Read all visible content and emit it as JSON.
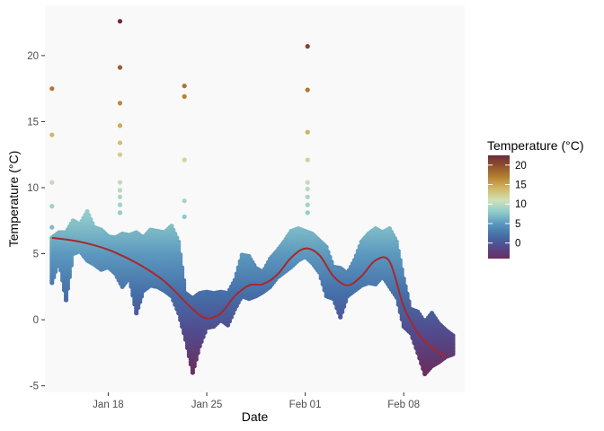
{
  "chart_data": {
    "type": "scatter",
    "title": "",
    "xlabel": "Date",
    "ylabel": "Temperature (°C)",
    "x_axis_type": "date",
    "xlim": [
      "2024-01-13T12:00",
      "2024-02-12T08:00"
    ],
    "ylim": [
      -5.5,
      23.8
    ],
    "x_ticks": [
      {
        "date": "2024-01-18",
        "label": "Jan 18"
      },
      {
        "date": "2024-01-25",
        "label": "Jan 25"
      },
      {
        "date": "2024-02-01",
        "label": "Feb 01"
      },
      {
        "date": "2024-02-08",
        "label": "Feb 08"
      }
    ],
    "y_ticks": [
      -5,
      0,
      5,
      10,
      15,
      20
    ],
    "grid": false,
    "panel_background": "#F9F9F9",
    "legend": {
      "title": "Temperature (°C)",
      "placement": "right",
      "ticks": [
        20,
        15,
        10,
        5,
        0
      ],
      "range": [
        -4,
        22.5
      ]
    },
    "color_scale": [
      {
        "value": -4,
        "color": "#6B2E5E"
      },
      {
        "value": -1,
        "color": "#524A8C"
      },
      {
        "value": 2,
        "color": "#456FA8"
      },
      {
        "value": 5,
        "color": "#5C98BE"
      },
      {
        "value": 8,
        "color": "#90CDCB"
      },
      {
        "value": 11,
        "color": "#CFE1B6"
      },
      {
        "value": 14,
        "color": "#D2B764"
      },
      {
        "value": 17,
        "color": "#B57F32"
      },
      {
        "value": 20,
        "color": "#8E4E2C"
      },
      {
        "value": 22.5,
        "color": "#6B2A3F"
      }
    ],
    "trend_color": "#A8282B",
    "trend": [
      {
        "x": "2024-01-14T00:00",
        "y": 6.2
      },
      {
        "x": "2024-01-16T00:00",
        "y": 5.9
      },
      {
        "x": "2024-01-18T00:00",
        "y": 5.3
      },
      {
        "x": "2024-01-20T00:00",
        "y": 4.3
      },
      {
        "x": "2024-01-22T00:00",
        "y": 2.9
      },
      {
        "x": "2024-01-24T00:00",
        "y": 0.8
      },
      {
        "x": "2024-01-25T00:00",
        "y": 0.1
      },
      {
        "x": "2024-01-26T00:00",
        "y": 0.5
      },
      {
        "x": "2024-01-27T00:00",
        "y": 1.8
      },
      {
        "x": "2024-01-28T00:00",
        "y": 2.6
      },
      {
        "x": "2024-01-29T00:00",
        "y": 2.7
      },
      {
        "x": "2024-01-30T00:00",
        "y": 3.4
      },
      {
        "x": "2024-01-31T00:00",
        "y": 4.7
      },
      {
        "x": "2024-02-01T00:00",
        "y": 5.4
      },
      {
        "x": "2024-02-02T00:00",
        "y": 4.9
      },
      {
        "x": "2024-02-03T00:00",
        "y": 3.3
      },
      {
        "x": "2024-02-04T00:00",
        "y": 2.6
      },
      {
        "x": "2024-02-05T00:00",
        "y": 3.3
      },
      {
        "x": "2024-02-06T00:00",
        "y": 4.5
      },
      {
        "x": "2024-02-07T00:00",
        "y": 4.4
      },
      {
        "x": "2024-02-08T00:00",
        "y": 1.0
      },
      {
        "x": "2024-02-09T00:00",
        "y": -1.0
      },
      {
        "x": "2024-02-10T00:00",
        "y": -2.1
      },
      {
        "x": "2024-02-11T00:00",
        "y": -2.8
      }
    ],
    "outliers": [
      {
        "x": "2024-01-14T00:00",
        "y": 17.5
      },
      {
        "x": "2024-01-14T00:00",
        "y": 14.0
      },
      {
        "x": "2024-01-14T00:00",
        "y": 10.4
      },
      {
        "x": "2024-01-14T00:00",
        "y": 8.6
      },
      {
        "x": "2024-01-14T00:00",
        "y": 7.0
      },
      {
        "x": "2024-01-18T20:00",
        "y": 22.6
      },
      {
        "x": "2024-01-18T20:00",
        "y": 19.1
      },
      {
        "x": "2024-01-18T20:00",
        "y": 16.4
      },
      {
        "x": "2024-01-18T20:00",
        "y": 14.7
      },
      {
        "x": "2024-01-18T20:00",
        "y": 13.4
      },
      {
        "x": "2024-01-18T20:00",
        "y": 12.5
      },
      {
        "x": "2024-01-18T20:00",
        "y": 10.4
      },
      {
        "x": "2024-01-18T20:00",
        "y": 9.8
      },
      {
        "x": "2024-01-18T20:00",
        "y": 9.3
      },
      {
        "x": "2024-01-18T20:00",
        "y": 8.7
      },
      {
        "x": "2024-01-18T20:00",
        "y": 8.1
      },
      {
        "x": "2024-01-23T10:00",
        "y": 17.7
      },
      {
        "x": "2024-01-23T10:00",
        "y": 16.9
      },
      {
        "x": "2024-01-23T10:00",
        "y": 12.1
      },
      {
        "x": "2024-01-23T10:00",
        "y": 9.0
      },
      {
        "x": "2024-01-23T10:00",
        "y": 7.8
      },
      {
        "x": "2024-02-01T04:00",
        "y": 20.7
      },
      {
        "x": "2024-02-01T04:00",
        "y": 17.4
      },
      {
        "x": "2024-02-01T04:00",
        "y": 14.2
      },
      {
        "x": "2024-02-01T04:00",
        "y": 12.1
      },
      {
        "x": "2024-02-01T04:00",
        "y": 10.4
      },
      {
        "x": "2024-02-01T04:00",
        "y": 9.9
      },
      {
        "x": "2024-02-01T04:00",
        "y": 9.3
      },
      {
        "x": "2024-02-01T04:00",
        "y": 8.7
      },
      {
        "x": "2024-02-01T04:00",
        "y": 8.1
      }
    ],
    "bands": [
      {
        "x": "2024-01-14T00:00",
        "lo": 2.8,
        "hi": 6.2
      },
      {
        "x": "2024-01-14T12:00",
        "lo": 4.5,
        "hi": 6.6
      },
      {
        "x": "2024-01-15T00:00",
        "lo": 1.5,
        "hi": 6.6
      },
      {
        "x": "2024-01-15T12:00",
        "lo": 5.0,
        "hi": 7.5
      },
      {
        "x": "2024-01-16T00:00",
        "lo": 5.2,
        "hi": 7.2
      },
      {
        "x": "2024-01-16T12:00",
        "lo": 4.5,
        "hi": 8.2
      },
      {
        "x": "2024-01-17T00:00",
        "lo": 4.2,
        "hi": 7.0
      },
      {
        "x": "2024-01-17T12:00",
        "lo": 3.8,
        "hi": 6.8
      },
      {
        "x": "2024-01-18T00:00",
        "lo": 4.0,
        "hi": 6.3
      },
      {
        "x": "2024-01-18T12:00",
        "lo": 3.5,
        "hi": 6.2
      },
      {
        "x": "2024-01-19T00:00",
        "lo": 2.5,
        "hi": 6.5
      },
      {
        "x": "2024-01-19T12:00",
        "lo": 3.2,
        "hi": 6.4
      },
      {
        "x": "2024-01-20T00:00",
        "lo": 0.5,
        "hi": 6.6
      },
      {
        "x": "2024-01-20T12:00",
        "lo": 2.2,
        "hi": 6.2
      },
      {
        "x": "2024-01-21T00:00",
        "lo": 2.6,
        "hi": 6.8
      },
      {
        "x": "2024-01-21T12:00",
        "lo": 2.5,
        "hi": 6.7
      },
      {
        "x": "2024-01-22T00:00",
        "lo": 2.2,
        "hi": 6.6
      },
      {
        "x": "2024-01-22T12:00",
        "lo": 1.8,
        "hi": 7.1
      },
      {
        "x": "2024-01-23T00:00",
        "lo": 0.5,
        "hi": 5.9
      },
      {
        "x": "2024-01-23T12:00",
        "lo": -1.5,
        "hi": 2.0
      },
      {
        "x": "2024-01-24T00:00",
        "lo": -4.0,
        "hi": 1.6
      },
      {
        "x": "2024-01-24T12:00",
        "lo": -2.0,
        "hi": 2.0
      },
      {
        "x": "2024-01-25T00:00",
        "lo": -0.6,
        "hi": 2.1
      },
      {
        "x": "2024-01-25T12:00",
        "lo": -0.5,
        "hi": 2.0
      },
      {
        "x": "2024-01-26T00:00",
        "lo": 0.0,
        "hi": 2.1
      },
      {
        "x": "2024-01-26T12:00",
        "lo": -0.4,
        "hi": 2.0
      },
      {
        "x": "2024-01-27T00:00",
        "lo": 0.8,
        "hi": 3.0
      },
      {
        "x": "2024-01-27T12:00",
        "lo": 1.8,
        "hi": 4.9
      },
      {
        "x": "2024-01-28T00:00",
        "lo": 1.6,
        "hi": 4.8
      },
      {
        "x": "2024-01-28T12:00",
        "lo": 1.8,
        "hi": 3.9
      },
      {
        "x": "2024-01-29T00:00",
        "lo": 2.1,
        "hi": 3.6
      },
      {
        "x": "2024-01-29T12:00",
        "lo": 2.5,
        "hi": 4.6
      },
      {
        "x": "2024-01-30T00:00",
        "lo": 3.2,
        "hi": 5.2
      },
      {
        "x": "2024-01-30T12:00",
        "lo": 3.6,
        "hi": 5.9
      },
      {
        "x": "2024-01-31T00:00",
        "lo": 4.0,
        "hi": 6.7
      },
      {
        "x": "2024-01-31T12:00",
        "lo": 4.5,
        "hi": 6.9
      },
      {
        "x": "2024-02-01T00:00",
        "lo": 4.8,
        "hi": 6.7
      },
      {
        "x": "2024-02-01T12:00",
        "lo": 4.3,
        "hi": 6.5
      },
      {
        "x": "2024-02-02T00:00",
        "lo": 3.6,
        "hi": 6.0
      },
      {
        "x": "2024-02-02T12:00",
        "lo": 1.8,
        "hi": 5.5
      },
      {
        "x": "2024-02-03T00:00",
        "lo": 1.6,
        "hi": 4.0
      },
      {
        "x": "2024-02-03T12:00",
        "lo": 0.2,
        "hi": 3.9
      },
      {
        "x": "2024-02-04T00:00",
        "lo": 1.8,
        "hi": 3.5
      },
      {
        "x": "2024-02-04T12:00",
        "lo": 2.2,
        "hi": 4.5
      },
      {
        "x": "2024-02-05T00:00",
        "lo": 2.6,
        "hi": 5.9
      },
      {
        "x": "2024-02-05T12:00",
        "lo": 2.8,
        "hi": 6.5
      },
      {
        "x": "2024-02-06T00:00",
        "lo": 2.7,
        "hi": 6.9
      },
      {
        "x": "2024-02-06T12:00",
        "lo": 3.3,
        "hi": 6.6
      },
      {
        "x": "2024-02-07T00:00",
        "lo": 2.5,
        "hi": 6.9
      },
      {
        "x": "2024-02-07T12:00",
        "lo": 1.7,
        "hi": 5.9
      },
      {
        "x": "2024-02-08T00:00",
        "lo": -0.5,
        "hi": 3.1
      },
      {
        "x": "2024-02-08T12:00",
        "lo": -1.0,
        "hi": 0.8
      },
      {
        "x": "2024-02-09T00:00",
        "lo": -2.5,
        "hi": 0.6
      },
      {
        "x": "2024-02-09T12:00",
        "lo": -4.1,
        "hi": -0.2
      },
      {
        "x": "2024-02-10T00:00",
        "lo": -3.5,
        "hi": 0.5
      },
      {
        "x": "2024-02-10T12:00",
        "lo": -3.2,
        "hi": -0.3
      },
      {
        "x": "2024-02-11T00:00",
        "lo": -2.8,
        "hi": -0.8
      },
      {
        "x": "2024-02-11T12:00",
        "lo": -2.6,
        "hi": -1.2
      }
    ]
  }
}
